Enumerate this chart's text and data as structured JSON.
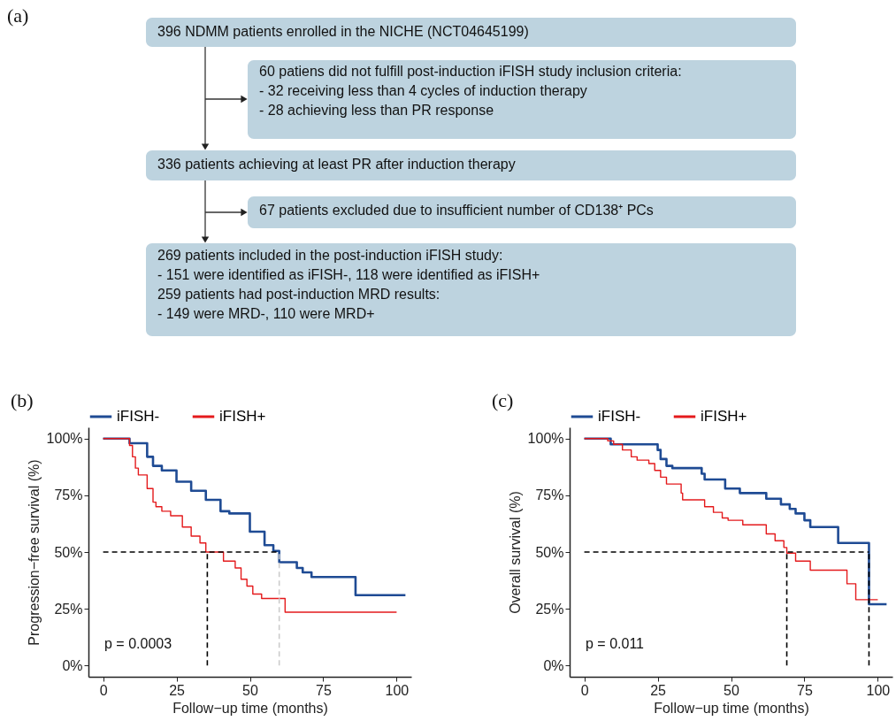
{
  "chart_data": [
    {
      "type": "other",
      "title": "(a)",
      "annotations": [
        "396 NDMM patients enrolled in the NICHE (NCT04645199)",
        "60 patiens did not fulfill post-induction iFISH study inclusion criteria:\n- 32 receiving less than 4 cycles of induction therapy\n- 28 achieving less than PR response",
        "336 patients achieving at least PR after induction therapy",
        "67 patients excluded due to insufficient number of CD138⁺ PCs",
        "269 patients included in the post-induction iFISH study:\n- 151 were identified as iFISH-, 118 were identified as iFISH+\n259 patients had post-induction MRD results:\n- 149 were MRD-, 110 were MRD+"
      ]
    },
    {
      "type": "step",
      "title": "(b)",
      "xlabel": "Follow−up time (months)",
      "ylabel": "Progression−free survival (%)",
      "legend": "top",
      "grid": false,
      "xlim": [
        -5,
        105
      ],
      "xticks": [
        0,
        25,
        50,
        75,
        100
      ],
      "ylim": [
        -5,
        105
      ],
      "yticks": [
        {
          "value": 0,
          "label": "0%"
        },
        {
          "value": 25,
          "label": "25%"
        },
        {
          "value": 50,
          "label": "50%"
        },
        {
          "value": 75,
          "label": "75%"
        },
        {
          "value": 100,
          "label": "100%"
        }
      ],
      "series": [
        {
          "name": "iFISH-",
          "color": "#1f4b94",
          "x": [
            0,
            9,
            15,
            17,
            20,
            25,
            30,
            35,
            40,
            43,
            50,
            55,
            58,
            60,
            66,
            68,
            71,
            86,
            103
          ],
          "values": [
            100,
            98,
            92,
            88,
            86,
            81,
            77,
            73,
            68,
            67,
            59,
            53,
            50.5,
            45.5,
            43,
            41,
            39,
            31,
            31
          ]
        },
        {
          "name": "iFISH+",
          "color": "#e41a1c",
          "x": [
            0,
            9,
            10,
            11,
            12,
            15,
            17,
            18,
            20,
            23,
            27,
            30,
            33,
            35,
            41,
            45,
            47,
            49,
            51,
            54,
            62,
            100
          ],
          "values": [
            100,
            97,
            92,
            87,
            84,
            78,
            72,
            70,
            68,
            66,
            61,
            57,
            54,
            50,
            46,
            43,
            38,
            35,
            31.5,
            29.5,
            23.5,
            23.5
          ]
        }
      ],
      "ref_lines": [
        {
          "axis": "y",
          "value": 50,
          "color": "#000000",
          "line_style": "dashed"
        },
        {
          "axis": "x",
          "value": 35.5,
          "color": "#000000",
          "line_style": "dashed"
        },
        {
          "axis": "x",
          "value": 60,
          "color": "#cccccc",
          "line_style": "dashed"
        }
      ],
      "annotations": [
        "p = 0.0003"
      ]
    },
    {
      "type": "step",
      "title": "(c)",
      "xlabel": "Follow−up time (months)",
      "ylabel": "Overall survival (%)",
      "legend": "top",
      "grid": false,
      "xlim": [
        -5,
        105
      ],
      "xticks": [
        0,
        25,
        50,
        75,
        100
      ],
      "ylim": [
        -5,
        105
      ],
      "yticks": [
        {
          "value": 0,
          "label": "0%"
        },
        {
          "value": 25,
          "label": "25%"
        },
        {
          "value": 50,
          "label": "50%"
        },
        {
          "value": 75,
          "label": "75%"
        },
        {
          "value": 100,
          "label": "100%"
        }
      ],
      "series": [
        {
          "name": "iFISH-",
          "color": "#1f4b94",
          "x": [
            0,
            9,
            25,
            26,
            28,
            30,
            40,
            41,
            48,
            53,
            62,
            67,
            70,
            72,
            75,
            77,
            86.5,
            97,
            103
          ],
          "values": [
            100,
            97.5,
            95,
            91,
            88,
            87,
            84.5,
            82,
            78,
            76,
            73.5,
            71,
            69,
            67,
            64,
            61,
            54,
            27,
            27
          ]
        },
        {
          "name": "iFISH+",
          "color": "#e41a1c",
          "x": [
            0,
            8,
            10,
            13,
            16,
            18,
            22,
            24,
            26,
            28,
            33,
            33.5,
            41,
            44,
            47,
            49,
            54,
            62,
            65,
            68,
            69,
            72,
            77,
            89.5,
            92.5,
            100
          ],
          "values": [
            100,
            99,
            97.5,
            95,
            92,
            90.5,
            89,
            86,
            83,
            80,
            76,
            73,
            70,
            67.5,
            65,
            64,
            62,
            58,
            55,
            52,
            49.5,
            46,
            42,
            36,
            29,
            29
          ]
        }
      ],
      "ref_lines": [
        {
          "axis": "y",
          "value": 50,
          "color": "#000000",
          "line_style": "dashed"
        },
        {
          "axis": "x",
          "value": 69,
          "color": "#000000",
          "line_style": "dashed"
        },
        {
          "axis": "x",
          "value": 97,
          "color": "#000000",
          "line_style": "dashed"
        }
      ],
      "annotations": [
        "p = 0.011"
      ]
    }
  ]
}
